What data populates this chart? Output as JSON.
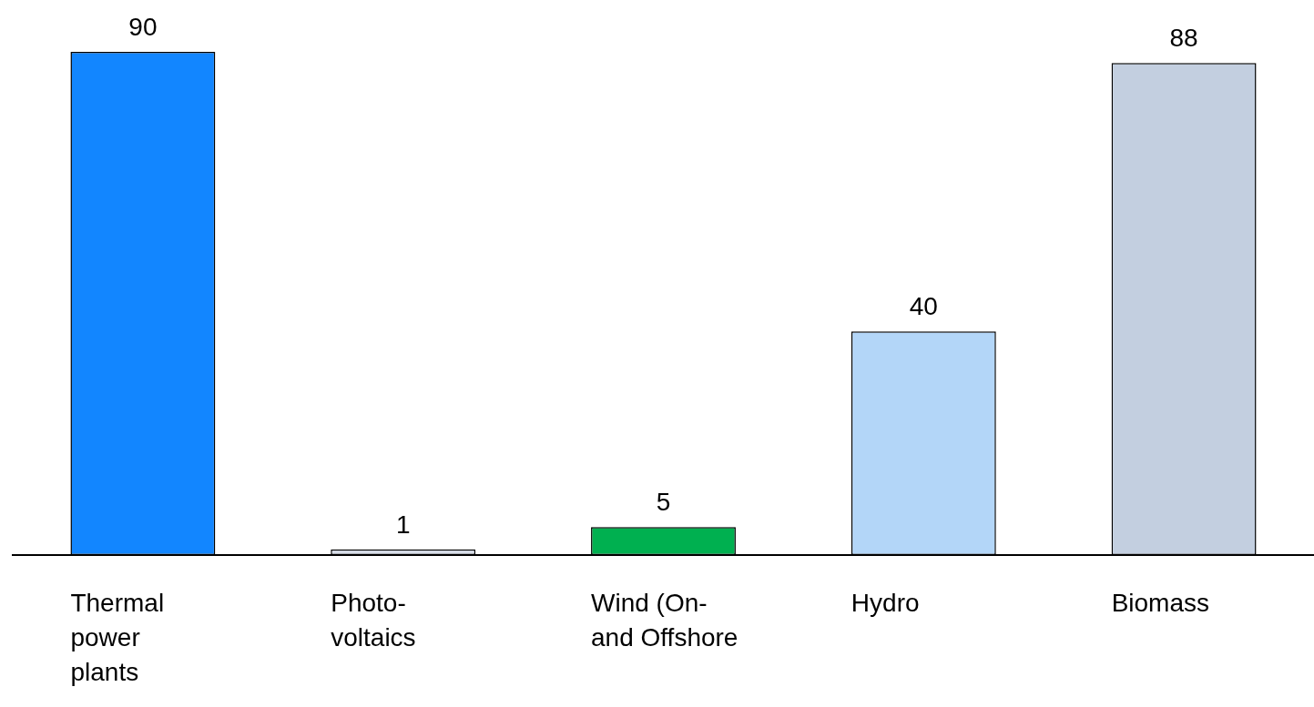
{
  "chart_data": {
    "type": "bar",
    "categories": [
      "Thermal\npower\nplants",
      "Photo-\nvoltaics",
      "Wind (On-\nand Offshore",
      "Hydro",
      "Biomass"
    ],
    "values": [
      90,
      1,
      5,
      40,
      88
    ],
    "colors": [
      "#1286ff",
      "#d6dce8",
      "#00b050",
      "#b3d6f8",
      "#c3cfe0"
    ],
    "data_labels": true,
    "grid": false,
    "legend": false
  }
}
